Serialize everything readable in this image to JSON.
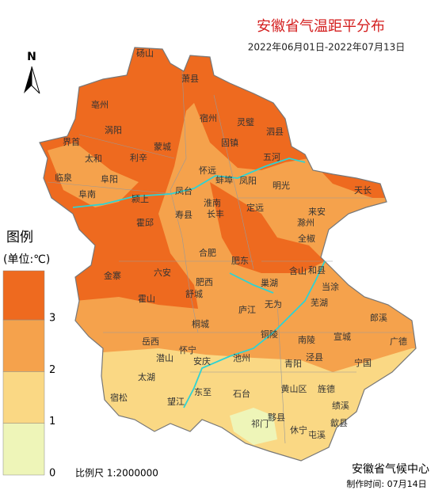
{
  "header": {
    "title": "安徽省气温距平分布",
    "date_range": "2022年06月01日-2022年07月13日",
    "north": "N"
  },
  "legend": {
    "title": "图例",
    "unit": "(单位:℃)",
    "ticks": [
      0,
      1,
      2,
      3
    ],
    "colors": [
      "#eef5b8",
      "#fad884",
      "#f5a24c",
      "#ee6a1f"
    ]
  },
  "footer": {
    "scale": "比例尺  1:2000000",
    "agency": "安徽省气候中心",
    "made": "制作时间: 07月14日"
  },
  "places": [
    "砀山",
    "萧县",
    "宿州",
    "灵璧",
    "泗县",
    "界首",
    "临泉",
    "太和",
    "阜阳",
    "阜南",
    "颍上",
    "涡阳",
    "亳州",
    "蒙城",
    "利辛",
    "固镇",
    "五河",
    "怀远",
    "蚌埠",
    "凤阳",
    "明光",
    "凤台",
    "淮南",
    "寿县",
    "长丰",
    "定远",
    "来安",
    "天长",
    "滁州",
    "全椒",
    "霍邱",
    "金寨",
    "六安",
    "合肥",
    "肥东",
    "肥西",
    "巢湖",
    "和县",
    "当涂",
    "含山",
    "无为",
    "芜湖",
    "霍山",
    "舒城",
    "庐江",
    "桐城",
    "铜陵",
    "南陵",
    "宣城",
    "郎溪",
    "广德",
    "宁国",
    "泾县",
    "旌德",
    "绩溪",
    "歙县",
    "黄山区",
    "黟县",
    "休宁",
    "屯溪",
    "祁门",
    "石台",
    "东至",
    "青阳",
    "池州",
    "安庆",
    "望江",
    "宿松",
    "太湖",
    "潜山",
    "怀宁",
    "岳西"
  ]
}
